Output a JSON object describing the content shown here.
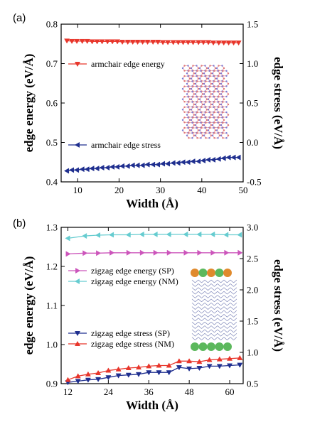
{
  "chart_data": [
    {
      "panel_label": "(a)",
      "type": "line",
      "xlabel": "Width (Å)",
      "ylabel": "edge energy (eV/Å)",
      "ylabel_right": "edge stress (eV/Å)",
      "xlim": [
        6,
        50
      ],
      "ylim": [
        0.4,
        0.8
      ],
      "ylim_right": [
        -0.5,
        1.5
      ],
      "xticks": [
        10,
        20,
        30,
        40,
        50
      ],
      "yticks": [
        0.4,
        0.5,
        0.6,
        0.7,
        0.8
      ],
      "yticks_right": [
        -0.5,
        0.0,
        0.5,
        1.0,
        1.5
      ],
      "xtick_labels": [
        "10",
        "20",
        "30",
        "40",
        "50"
      ],
      "ytick_labels": [
        "0.4",
        "0.5",
        "0.6",
        "0.7",
        "0.8"
      ],
      "ytick_labels_right": [
        "-0.5",
        "0.0",
        "0.5",
        "1.0",
        "1.5"
      ],
      "grid": false,
      "legend_position": "upper-left and lower-left",
      "inset": "armchair nanoribbon atomic structure",
      "series": [
        {
          "name": "armchair edge energy",
          "axis": "left",
          "color": "#e8362b",
          "marker": "triangle-down",
          "x": [
            7.4,
            8.6,
            9.8,
            11.1,
            12.3,
            13.5,
            14.7,
            15.9,
            17.2,
            18.4,
            19.6,
            20.8,
            22.1,
            23.3,
            24.5,
            25.7,
            26.9,
            28.2,
            29.4,
            30.6,
            31.8,
            33.1,
            34.3,
            35.5,
            36.7,
            37.9,
            39.2,
            40.4,
            41.6,
            42.8,
            44.1,
            45.3,
            46.5,
            47.7,
            48.9
          ],
          "y": [
            0.758,
            0.757,
            0.757,
            0.757,
            0.757,
            0.756,
            0.756,
            0.756,
            0.756,
            0.756,
            0.756,
            0.755,
            0.755,
            0.755,
            0.755,
            0.755,
            0.755,
            0.755,
            0.755,
            0.754,
            0.754,
            0.754,
            0.754,
            0.754,
            0.754,
            0.754,
            0.754,
            0.754,
            0.754,
            0.753,
            0.753,
            0.753,
            0.753,
            0.753,
            0.753
          ]
        },
        {
          "name": "armchair edge stress",
          "axis": "right",
          "color": "#1f2f8f",
          "marker": "triangle-left",
          "x": [
            7.4,
            8.6,
            9.8,
            11.1,
            12.3,
            13.5,
            14.7,
            15.9,
            17.2,
            18.4,
            19.6,
            20.8,
            22.1,
            23.3,
            24.5,
            25.7,
            26.9,
            28.2,
            29.4,
            30.6,
            31.8,
            33.1,
            34.3,
            35.5,
            36.7,
            37.9,
            39.2,
            40.4,
            41.6,
            42.8,
            44.1,
            45.3,
            46.5,
            47.7,
            48.9
          ],
          "y": [
            -0.36,
            -0.35,
            -0.35,
            -0.34,
            -0.34,
            -0.33,
            -0.33,
            -0.32,
            -0.32,
            -0.31,
            -0.31,
            -0.3,
            -0.3,
            -0.29,
            -0.29,
            -0.29,
            -0.28,
            -0.28,
            -0.28,
            -0.27,
            -0.27,
            -0.26,
            -0.26,
            -0.25,
            -0.25,
            -0.24,
            -0.24,
            -0.23,
            -0.22,
            -0.22,
            -0.21,
            -0.2,
            -0.19,
            -0.19,
            -0.19
          ]
        }
      ]
    },
    {
      "panel_label": "(b)",
      "type": "line",
      "xlabel": "Width (Å)",
      "ylabel": "edge energy (eV/Å)",
      "ylabel_right": "edge stress (eV/Å)",
      "xlim": [
        10,
        64
      ],
      "ylim": [
        0.9,
        1.3
      ],
      "ylim_right": [
        0.5,
        3.0
      ],
      "xticks": [
        12,
        24,
        36,
        48,
        60
      ],
      "yticks": [
        0.9,
        1.0,
        1.1,
        1.2,
        1.3
      ],
      "yticks_right": [
        0.5,
        1.0,
        1.5,
        2.0,
        2.5,
        3.0
      ],
      "xtick_labels": [
        "12",
        "24",
        "36",
        "48",
        "60"
      ],
      "ytick_labels": [
        "0.9",
        "1.0",
        "1.1",
        "1.2",
        "1.3"
      ],
      "ytick_labels_right": [
        "0.5",
        "1.0",
        "1.5",
        "2.0",
        "2.5",
        "3.0"
      ],
      "grid": false,
      "legend_position": "center-left",
      "inset": "zigzag nanoribbon atomic structure with spin density at edges",
      "series": [
        {
          "name": "zigzag edge energy (SP)",
          "axis": "left",
          "color": "#cc55bb",
          "marker": "triangle-right",
          "x": [
            12,
            17,
            21,
            25,
            30,
            34,
            38,
            42,
            47,
            51,
            55,
            59,
            63
          ],
          "y": [
            1.232,
            1.234,
            1.234,
            1.235,
            1.235,
            1.235,
            1.235,
            1.235,
            1.235,
            1.235,
            1.235,
            1.235,
            1.235
          ]
        },
        {
          "name": "zigzag edge energy (NM)",
          "axis": "left",
          "color": "#66ccd0",
          "marker": "triangle-left",
          "x": [
            12,
            17,
            21,
            25,
            30,
            34,
            38,
            42,
            47,
            51,
            55,
            59,
            63
          ],
          "y": [
            1.272,
            1.278,
            1.28,
            1.281,
            1.281,
            1.282,
            1.282,
            1.282,
            1.282,
            1.282,
            1.282,
            1.281,
            1.281
          ]
        },
        {
          "name": "zigzag edge stress (SP)",
          "axis": "right",
          "color": "#1f2f8f",
          "marker": "triangle-down",
          "x": [
            12,
            15,
            18,
            21,
            24,
            27,
            30,
            33,
            36,
            39,
            42,
            45,
            48,
            51,
            54,
            57,
            60,
            63
          ],
          "y": [
            0.52,
            0.54,
            0.56,
            0.57,
            0.6,
            0.63,
            0.64,
            0.65,
            0.68,
            0.68,
            0.68,
            0.76,
            0.74,
            0.75,
            0.78,
            0.78,
            0.79,
            0.8
          ]
        },
        {
          "name": "zigzag edge stress (NM)",
          "axis": "right",
          "color": "#e8362b",
          "marker": "triangle-up",
          "x": [
            12,
            15,
            18,
            21,
            24,
            27,
            30,
            33,
            36,
            39,
            42,
            45,
            48,
            51,
            54,
            57,
            60,
            63
          ],
          "y": [
            0.56,
            0.62,
            0.65,
            0.67,
            0.71,
            0.73,
            0.75,
            0.76,
            0.78,
            0.79,
            0.79,
            0.86,
            0.86,
            0.85,
            0.88,
            0.89,
            0.9,
            0.91
          ]
        }
      ]
    }
  ]
}
